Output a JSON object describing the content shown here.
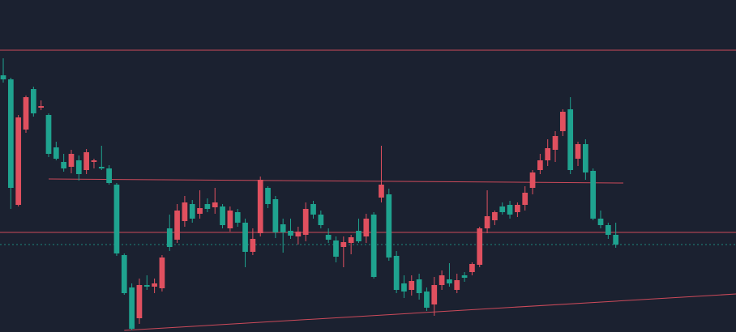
{
  "chart_data": {
    "type": "candlestick",
    "up_color": "#e0505f",
    "down_color": "#1fa38f",
    "line_color": "#cc4a5a",
    "last_color": "#1fa38f",
    "xlim": [
      -0.43,
      96.9
    ],
    "ylim": [
      0,
      410
    ],
    "open": [
      317,
      312,
      157,
      250,
      300,
      277,
      268,
      228,
      210,
      204,
      212,
      200,
      210,
      204,
      202,
      182,
      95,
      55,
      17,
      58,
      56,
      54,
      128,
      114,
      137,
      158,
      146,
      158,
      154,
      155,
      128,
      148,
      135,
      99,
      122,
      178,
      164,
      133,
      125,
      118,
      120,
      158,
      145,
      120,
      113,
      105,
      110,
      125,
      118,
      145,
      166,
      170,
      94,
      60,
      52,
      65,
      50,
      34,
      58,
      65,
      52,
      70,
      74,
      83,
      128,
      138,
      155,
      157,
      148,
      157,
      178,
      200,
      212,
      225,
      248,
      275,
      214,
      232,
      199,
      140,
      132,
      120
    ],
    "high": [
      338,
      314,
      268,
      292,
      303,
      286,
      270,
      235,
      220,
      225,
      218,
      226,
      214,
      230,
      206,
      184,
      97,
      60,
      66,
      70,
      66,
      95,
      145,
      158,
      168,
      163,
      175,
      165,
      178,
      158,
      155,
      152,
      140,
      128,
      192,
      180,
      168,
      140,
      140,
      130,
      160,
      162,
      150,
      128,
      118,
      118,
      120,
      140,
      146,
      148,
      230,
      177,
      100,
      70,
      70,
      72,
      55,
      68,
      76,
      85,
      72,
      74,
      86,
      130,
      175,
      150,
      160,
      162,
      160,
      180,
      200,
      220,
      238,
      248,
      275,
      290,
      235,
      238,
      202,
      150,
      135,
      135
    ],
    "low": [
      308,
      152,
      155,
      246,
      266,
      274,
      216,
      212,
      198,
      196,
      187,
      195,
      202,
      200,
      182,
      94,
      46,
      2,
      10,
      52,
      48,
      50,
      100,
      110,
      130,
      135,
      140,
      148,
      146,
      128,
      124,
      130,
      80,
      95,
      118,
      153,
      116,
      98,
      115,
      108,
      112,
      140,
      128,
      110,
      86,
      80,
      96,
      110,
      110,
      66,
      160,
      88,
      48,
      42,
      45,
      40,
      26,
      20,
      52,
      56,
      48,
      62,
      70,
      80,
      122,
      132,
      145,
      140,
      142,
      150,
      170,
      195,
      205,
      210,
      242,
      195,
      205,
      188,
      138,
      128,
      115,
      104
    ],
    "close": [
      312,
      178,
      265,
      290,
      270,
      279,
      220,
      214,
      202,
      220,
      195,
      222,
      212,
      202,
      184,
      97,
      48,
      4,
      58,
      56,
      60,
      92,
      105,
      150,
      160,
      140,
      153,
      152,
      160,
      132,
      150,
      135,
      99,
      115,
      188,
      158,
      123,
      123,
      119,
      124,
      152,
      145,
      132,
      114,
      93,
      111,
      117,
      112,
      140,
      68,
      182,
      92,
      52,
      50,
      63,
      48,
      30,
      58,
      70,
      60,
      64,
      67,
      84,
      128,
      143,
      148,
      148,
      145,
      157,
      172,
      197,
      212,
      227,
      242,
      272,
      200,
      232,
      197,
      140,
      132,
      120,
      108
    ],
    "levels": [
      348,
      123
    ],
    "trend_lines": [
      {
        "x": [
          6,
          82
        ],
        "y": [
          189,
          184
        ]
      },
      {
        "x": [
          16,
          97
        ],
        "y": [
          2,
          47
        ]
      }
    ]
  }
}
